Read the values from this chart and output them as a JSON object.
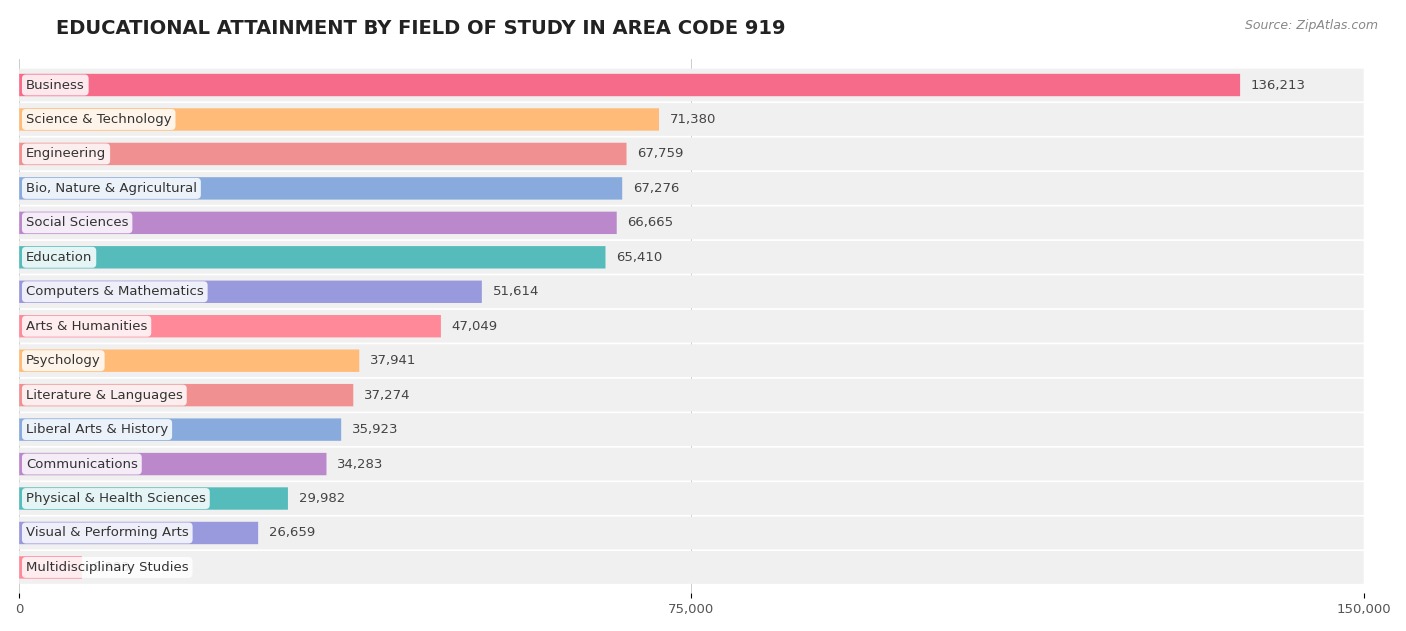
{
  "title": "EDUCATIONAL ATTAINMENT BY FIELD OF STUDY IN AREA CODE 919",
  "source": "Source: ZipAtlas.com",
  "categories": [
    "Business",
    "Science & Technology",
    "Engineering",
    "Bio, Nature & Agricultural",
    "Social Sciences",
    "Education",
    "Computers & Mathematics",
    "Arts & Humanities",
    "Psychology",
    "Literature & Languages",
    "Liberal Arts & History",
    "Communications",
    "Physical & Health Sciences",
    "Visual & Performing Arts",
    "Multidisciplinary Studies"
  ],
  "values": [
    136213,
    71380,
    67759,
    67276,
    66665,
    65410,
    51614,
    47049,
    37941,
    37274,
    35923,
    34283,
    29982,
    26659,
    6993
  ],
  "bar_colors": [
    "#F76B8A",
    "#FFBB77",
    "#F09090",
    "#88AADD",
    "#BB88CC",
    "#55BBBB",
    "#9999DD",
    "#FF8899",
    "#FFBB77",
    "#F09090",
    "#88AADD",
    "#BB88CC",
    "#55BBBB",
    "#9999DD",
    "#FF8899"
  ],
  "xlim": [
    0,
    150000
  ],
  "xticks": [
    0,
    75000,
    150000
  ],
  "background_color": "#ffffff",
  "bar_bg_color": "#f0f0f0",
  "title_fontsize": 14,
  "label_fontsize": 9.5,
  "value_fontsize": 9.5,
  "source_fontsize": 9
}
